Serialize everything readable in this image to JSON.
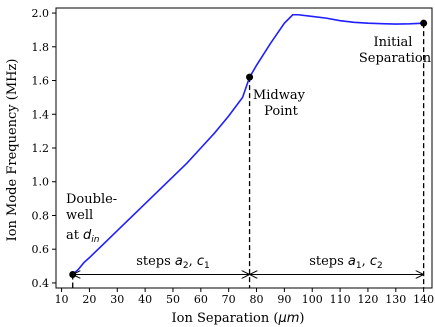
{
  "chart_data": {
    "type": "line",
    "xlabel": "Ion Separation (",
    "xlabel_unit": "μm",
    "xlabel_close": ")",
    "ylabel": "Ion Mode Frequency (MHz)",
    "xlim": [
      8,
      143
    ],
    "ylim": [
      0.37,
      2.03
    ],
    "xticks": [
      10,
      20,
      30,
      40,
      50,
      60,
      70,
      80,
      90,
      100,
      110,
      120,
      130,
      140
    ],
    "yticks": [
      0.4,
      0.6,
      0.8,
      1.0,
      1.2,
      1.4,
      1.6,
      1.8,
      2.0
    ],
    "grid": false,
    "line_color": "#1f1fff",
    "series": [
      {
        "x": [
          14,
          16,
          18,
          20,
          25,
          30,
          35,
          40,
          45,
          50,
          55,
          60,
          65,
          70,
          75,
          77.5,
          80,
          85,
          90,
          93,
          95,
          100,
          105,
          110,
          115,
          120,
          125,
          130,
          135,
          140
        ],
        "y": [
          0.45,
          0.48,
          0.52,
          0.55,
          0.63,
          0.71,
          0.79,
          0.87,
          0.95,
          1.03,
          1.11,
          1.2,
          1.29,
          1.39,
          1.5,
          1.62,
          1.69,
          1.82,
          1.94,
          1.99,
          1.99,
          1.98,
          1.97,
          1.955,
          1.945,
          1.94,
          1.937,
          1.935,
          1.936,
          1.94
        ]
      }
    ],
    "markers": [
      {
        "x": 14,
        "y": 0.45
      },
      {
        "x": 77.5,
        "y": 1.62
      },
      {
        "x": 140,
        "y": 1.94
      }
    ],
    "vlines": [
      14,
      77.5,
      140
    ],
    "annotations": {
      "initial": [
        "Initial",
        "Separation"
      ],
      "midway": [
        "Midway",
        "Point"
      ],
      "double": [
        "Double-",
        "well",
        "at"
      ],
      "double_var": "d",
      "double_sub": "in"
    },
    "arrows": [
      {
        "from": 14,
        "to": 77.5,
        "y": 0.45,
        "label_prefix": "steps ",
        "a_sub": "2",
        "c_sub": "1"
      },
      {
        "from": 77.5,
        "to": 140,
        "y": 0.45,
        "label_prefix": "steps ",
        "a_sub": "1",
        "c_sub": "2"
      }
    ],
    "arrow_vars": [
      "a",
      "c"
    ],
    "arrow_sep": ", "
  }
}
